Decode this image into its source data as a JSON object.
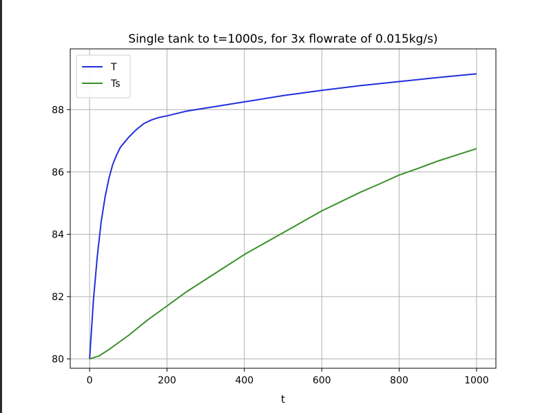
{
  "chart_data": {
    "type": "line",
    "title": "Single tank to t=1000s, for 3x flowrate of 0.015kg/s)",
    "xlabel": "t",
    "ylabel": "",
    "xlim": [
      -50,
      1050
    ],
    "ylim": [
      79.7,
      89.95
    ],
    "xticks": [
      0,
      200,
      400,
      600,
      800,
      1000
    ],
    "yticks": [
      80,
      82,
      84,
      86,
      88
    ],
    "grid": true,
    "legend_position": "top-left",
    "series": [
      {
        "name": "T",
        "color": "#1f2fdc",
        "x": [
          0,
          10,
          20,
          30,
          40,
          50,
          60,
          70,
          80,
          90,
          100,
          120,
          140,
          160,
          180,
          200,
          250,
          300,
          400,
          500,
          600,
          700,
          800,
          900,
          1000
        ],
        "y": [
          80.0,
          81.9,
          83.3,
          84.4,
          85.2,
          85.8,
          86.25,
          86.55,
          86.8,
          86.95,
          87.1,
          87.35,
          87.55,
          87.67,
          87.75,
          87.8,
          87.95,
          88.05,
          88.25,
          88.45,
          88.62,
          88.77,
          88.9,
          89.03,
          89.15
        ]
      },
      {
        "name": "Ts",
        "color": "#3a8f2a",
        "x": [
          0,
          25,
          50,
          100,
          150,
          200,
          250,
          300,
          350,
          400,
          450,
          500,
          550,
          600,
          650,
          700,
          750,
          800,
          850,
          900,
          950,
          1000
        ],
        "y": [
          80.0,
          80.1,
          80.3,
          80.75,
          81.25,
          81.7,
          82.15,
          82.55,
          82.95,
          83.35,
          83.7,
          84.05,
          84.4,
          84.75,
          85.05,
          85.35,
          85.62,
          85.9,
          86.12,
          86.35,
          86.55,
          86.75
        ]
      }
    ]
  }
}
